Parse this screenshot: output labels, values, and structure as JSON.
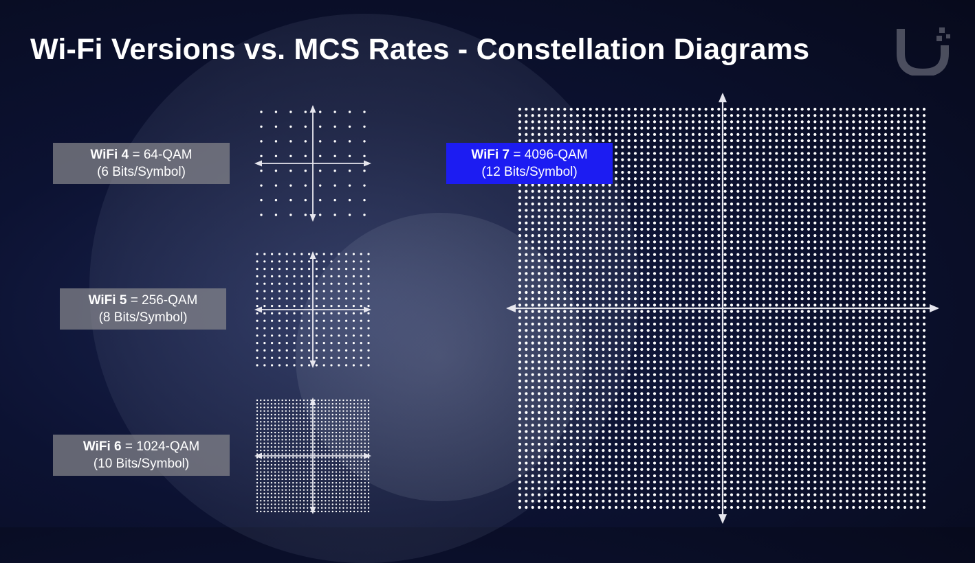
{
  "title": "Wi-Fi Versions vs. MCS Rates - Constellation Diagrams",
  "colors": {
    "highlight": "#1c1cf2",
    "label_bg": "#87878c",
    "dots": "#ffffff"
  },
  "brand_icon": "ubiquiti-logo-icon",
  "constellations": [
    {
      "version": "WiFi 4",
      "modulation": "= 64-QAM",
      "bits": "(6 Bits/Symbol)",
      "grid": 8
    },
    {
      "version": "WiFi 5",
      "modulation": "= 256-QAM",
      "bits": "(8 Bits/Symbol)",
      "grid": 16
    },
    {
      "version": "WiFi 6",
      "modulation": "= 1024-QAM",
      "bits": "(10 Bits/Symbol)",
      "grid": 32
    },
    {
      "version": "WiFi 7",
      "modulation": "= 4096-QAM",
      "bits": "(12 Bits/Symbol)",
      "grid": 64,
      "highlighted": true
    }
  ]
}
